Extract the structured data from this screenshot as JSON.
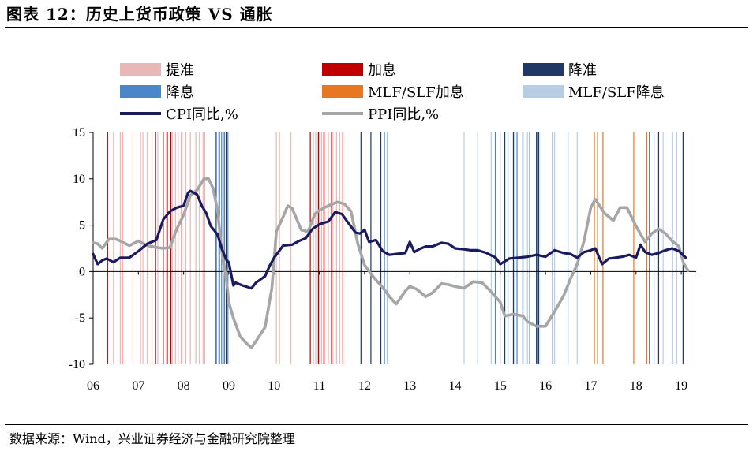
{
  "header": {
    "title": "图表 12：历史上货币政策 VS 通胀"
  },
  "footer": {
    "source": "数据来源：Wind，兴业证券经济与金融研究院整理"
  },
  "colors": {
    "reserve_hike": "#e8b8b8",
    "rate_hike": "#c00000",
    "reserve_cut": "#1f3864",
    "rate_cut": "#4a86c8",
    "mlf_hike": "#e87722",
    "mlf_cut": "#b8cce4",
    "cpi": "#1a1a5e",
    "ppi": "#a6a6a6"
  },
  "chart_data": {
    "type": "line",
    "title": "",
    "xlabel": "",
    "ylabel": "",
    "ylim": [
      -10,
      15
    ],
    "yticks": [
      -10,
      -5,
      0,
      5,
      10,
      15
    ],
    "xlim": [
      2006.0,
      2019.33
    ],
    "xtick_labels": [
      "06",
      "07",
      "08",
      "09",
      "10",
      "11",
      "12",
      "13",
      "14",
      "15",
      "16",
      "17",
      "18",
      "19"
    ],
    "xtick_positions": [
      2006,
      2007,
      2008,
      2009,
      2010,
      2011,
      2012,
      2013,
      2014,
      2015,
      2016,
      2017,
      2018,
      2019
    ],
    "grid": false,
    "legend_position": "top",
    "legend": [
      {
        "label": "提准",
        "kind": "box",
        "color_key": "reserve_hike"
      },
      {
        "label": "加息",
        "kind": "box",
        "color_key": "rate_hike"
      },
      {
        "label": "降准",
        "kind": "box",
        "color_key": "reserve_cut"
      },
      {
        "label": "降息",
        "kind": "box",
        "color_key": "rate_cut"
      },
      {
        "label": "MLF/SLF加息",
        "kind": "box",
        "color_key": "mlf_hike"
      },
      {
        "label": "MLF/SLF降息",
        "kind": "box",
        "color_key": "mlf_cut"
      },
      {
        "label": "CPI同比,%",
        "kind": "line",
        "color_key": "cpi"
      },
      {
        "label": "PPI同比,%",
        "kind": "line",
        "color_key": "ppi"
      }
    ],
    "series": [
      {
        "name": "CPI同比,%",
        "color_key": "cpi",
        "x": [
          2006.0,
          2006.1,
          2006.2,
          2006.3,
          2006.45,
          2006.6,
          2006.8,
          2007.0,
          2007.2,
          2007.4,
          2007.55,
          2007.7,
          2007.85,
          2008.0,
          2008.1,
          2008.15,
          2008.3,
          2008.4,
          2008.5,
          2008.6,
          2008.75,
          2008.85,
          2008.95,
          2009.0,
          2009.1,
          2009.15,
          2009.3,
          2009.5,
          2009.6,
          2009.8,
          2009.9,
          2010.0,
          2010.2,
          2010.4,
          2010.55,
          2010.7,
          2010.85,
          2011.0,
          2011.2,
          2011.35,
          2011.5,
          2011.6,
          2011.8,
          2011.9,
          2012.0,
          2012.1,
          2012.25,
          2012.4,
          2012.55,
          2012.7,
          2012.9,
          2013.0,
          2013.1,
          2013.2,
          2013.35,
          2013.5,
          2013.7,
          2013.85,
          2014.0,
          2014.2,
          2014.35,
          2014.5,
          2014.7,
          2014.9,
          2015.0,
          2015.2,
          2015.4,
          2015.6,
          2015.8,
          2016.0,
          2016.2,
          2016.4,
          2016.55,
          2016.7,
          2016.85,
          2017.0,
          2017.1,
          2017.25,
          2017.4,
          2017.55,
          2017.7,
          2017.85,
          2018.0,
          2018.1,
          2018.2,
          2018.35,
          2018.5,
          2018.65,
          2018.8,
          2018.95,
          2019.1
        ],
        "values": [
          1.9,
          0.8,
          1.2,
          1.4,
          1.0,
          1.5,
          1.5,
          2.2,
          3.0,
          3.4,
          5.6,
          6.5,
          6.9,
          7.1,
          8.5,
          8.7,
          8.3,
          7.1,
          6.3,
          4.9,
          4.0,
          2.4,
          1.2,
          1.0,
          -1.5,
          -1.2,
          -1.5,
          -1.8,
          -1.2,
          -0.5,
          0.6,
          1.5,
          2.8,
          2.9,
          3.3,
          3.6,
          4.6,
          5.1,
          5.4,
          6.4,
          6.2,
          5.5,
          4.2,
          4.1,
          4.5,
          3.2,
          3.4,
          2.2,
          1.8,
          1.9,
          2.0,
          3.2,
          2.1,
          2.4,
          2.7,
          2.7,
          3.1,
          3.0,
          2.5,
          2.4,
          2.3,
          2.3,
          2.0,
          1.5,
          0.8,
          1.4,
          1.5,
          1.6,
          1.8,
          1.6,
          2.3,
          2.0,
          1.9,
          1.5,
          2.1,
          2.3,
          2.5,
          0.8,
          1.4,
          1.5,
          1.6,
          1.8,
          1.5,
          2.9,
          2.1,
          1.8,
          2.0,
          2.3,
          2.5,
          2.2,
          1.5
        ]
      },
      {
        "name": "PPI同比,%",
        "color_key": "ppi",
        "x": [
          2006.0,
          2006.1,
          2006.2,
          2006.35,
          2006.5,
          2006.6,
          2006.8,
          2007.0,
          2007.2,
          2007.4,
          2007.55,
          2007.7,
          2007.85,
          2008.0,
          2008.15,
          2008.3,
          2008.45,
          2008.55,
          2008.65,
          2008.75,
          2008.85,
          2008.95,
          2009.0,
          2009.1,
          2009.25,
          2009.4,
          2009.5,
          2009.6,
          2009.8,
          2009.95,
          2010.05,
          2010.2,
          2010.3,
          2010.4,
          2010.6,
          2010.75,
          2010.9,
          2011.0,
          2011.2,
          2011.4,
          2011.55,
          2011.7,
          2011.85,
          2012.0,
          2012.2,
          2012.4,
          2012.55,
          2012.7,
          2012.9,
          2013.0,
          2013.15,
          2013.35,
          2013.5,
          2013.7,
          2013.85,
          2014.0,
          2014.2,
          2014.4,
          2014.6,
          2014.8,
          2015.0,
          2015.1,
          2015.3,
          2015.5,
          2015.6,
          2015.8,
          2016.0,
          2016.2,
          2016.4,
          2016.55,
          2016.7,
          2016.85,
          2017.0,
          2017.1,
          2017.3,
          2017.5,
          2017.65,
          2017.8,
          2018.0,
          2018.2,
          2018.35,
          2018.5,
          2018.65,
          2018.8,
          2018.95,
          2019.05,
          2019.15
        ],
        "values": [
          3.1,
          3.0,
          2.5,
          3.5,
          3.5,
          3.3,
          2.8,
          3.3,
          2.8,
          2.6,
          2.5,
          2.6,
          4.6,
          6.1,
          8.2,
          8.8,
          10.0,
          10.0,
          9.0,
          6.6,
          2.0,
          -1.1,
          -3.3,
          -5.0,
          -7.0,
          -7.8,
          -8.2,
          -7.5,
          -6.0,
          -1.8,
          4.3,
          5.9,
          7.1,
          6.8,
          4.5,
          4.3,
          6.2,
          6.6,
          7.1,
          7.5,
          7.3,
          6.5,
          3.0,
          0.7,
          -0.6,
          -1.7,
          -2.7,
          -3.5,
          -2.1,
          -1.6,
          -1.9,
          -2.7,
          -2.3,
          -1.3,
          -1.4,
          -1.6,
          -1.8,
          -1.1,
          -1.2,
          -2.2,
          -3.3,
          -4.8,
          -4.6,
          -4.8,
          -5.4,
          -5.9,
          -5.9,
          -4.3,
          -2.6,
          -0.8,
          0.8,
          3.3,
          6.9,
          7.8,
          6.3,
          5.5,
          6.9,
          6.9,
          4.9,
          3.2,
          4.1,
          4.6,
          4.1,
          3.3,
          2.7,
          0.9,
          0.1
        ]
      }
    ],
    "policy_events": {
      "reserve_hike": [
        2006.45,
        2006.6,
        2006.88,
        2007.05,
        2007.1,
        2007.3,
        2007.38,
        2007.43,
        2007.55,
        2007.62,
        2007.75,
        2007.82,
        2007.88,
        2007.96,
        2008.05,
        2008.15,
        2008.27,
        2008.35,
        2008.43,
        2008.47,
        2010.05,
        2010.12,
        2010.37,
        2010.87,
        2010.92,
        2011.0,
        2011.05,
        2011.12,
        2011.2,
        2011.3,
        2011.38,
        2011.45
      ],
      "rate_hike": [
        2006.32,
        2006.64,
        2007.21,
        2007.38,
        2007.55,
        2007.64,
        2007.72,
        2007.96,
        2010.8,
        2010.98,
        2011.1,
        2011.27,
        2011.52
      ],
      "reserve_cut": [
        2008.72,
        2008.79,
        2008.9,
        2008.94,
        2011.92,
        2012.14,
        2012.36,
        2015.1,
        2015.29,
        2015.5,
        2015.65,
        2015.8,
        2015.85,
        2016.16,
        2018.3,
        2018.5,
        2018.8,
        2019.04
      ],
      "rate_cut": [
        2008.71,
        2008.78,
        2008.84,
        2008.9,
        2008.98,
        2012.44,
        2012.51,
        2014.89,
        2015.17,
        2015.37,
        2015.5,
        2015.65,
        2015.82
      ],
      "mlf_hike": [
        2017.08,
        2017.15,
        2017.27,
        2017.95,
        2018.24
      ],
      "mlf_cut": [
        2014.2,
        2014.5,
        2014.8,
        2015.0,
        2015.3,
        2015.6,
        2015.9,
        2016.2,
        2016.5,
        2016.7,
        2018.4,
        2018.6,
        2018.9
      ]
    }
  }
}
